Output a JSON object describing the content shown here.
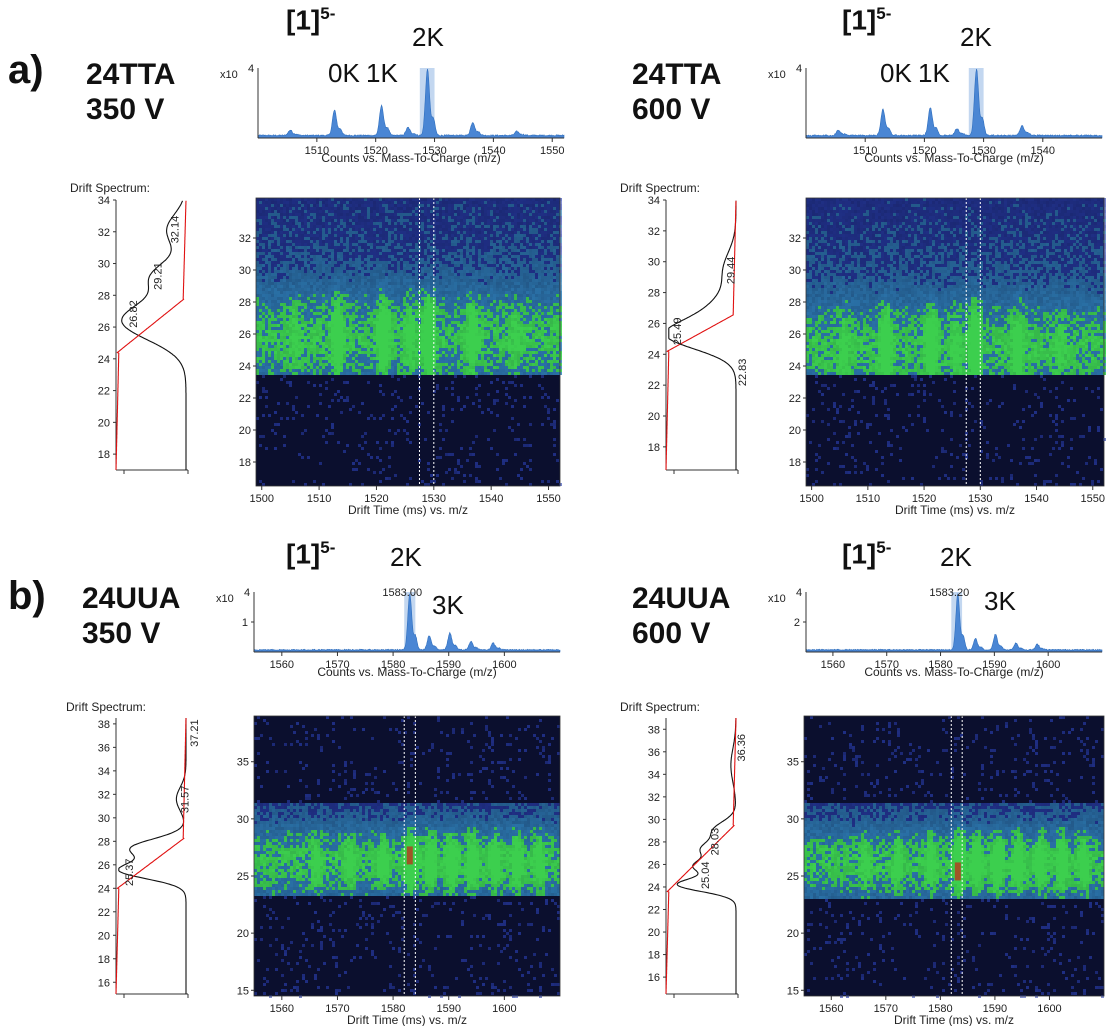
{
  "labels": {
    "row_a": "a)",
    "row_b": "b)",
    "ion_base": "[1]",
    "ion_sup": "5-",
    "drift_title": "Drift Spectrum:",
    "ms_xlabel": "Counts vs. Mass-To-Charge (m/z)",
    "map_xlabel": "Drift Time (ms) vs. m/z",
    "ms_scale": "x10",
    "ms_scale_exp": "4"
  },
  "colors": {
    "ms_fill": "#4a86d4",
    "highlight": "#a9c6ea",
    "drift_black": "#111111",
    "drift_red": "#e01010",
    "map_bg": "#0b0f2e",
    "map_blue": "#2a3fb0",
    "map_green": "#3ccf4e",
    "map_red": "#b24020"
  },
  "chart_data": [
    {
      "id": "a-350",
      "type": "heatmap",
      "sample": "24TTA",
      "voltage": "350 V",
      "peak_tags": [
        "0K",
        "1K",
        "2K"
      ],
      "ms": {
        "xlim": [
          1500,
          1552
        ],
        "xticks": [
          1510,
          1520,
          1530,
          1540,
          1550
        ],
        "yticks": [],
        "yticklabels": [],
        "peaks": [
          [
            1505.5,
            0.08
          ],
          [
            1513,
            0.38
          ],
          [
            1521,
            0.45
          ],
          [
            1525.5,
            0.12
          ],
          [
            1528.8,
            1.0
          ],
          [
            1536.5,
            0.2
          ],
          [
            1544,
            0.06
          ]
        ],
        "highlight": [
          1527.5,
          1530
        ],
        "highlight_label": ""
      },
      "drift": {
        "ylim": [
          17,
          34
        ],
        "yticks": [
          18,
          20,
          22,
          24,
          26,
          28,
          30,
          32,
          34
        ],
        "labels": [
          "32.14",
          "29.21",
          "26.82"
        ],
        "label_y": [
          32.14,
          29.21,
          26.82
        ],
        "black_peaks": [
          [
            26.4,
            1.0,
            1.2
          ],
          [
            29.2,
            0.5,
            0.9
          ],
          [
            32.1,
            0.3,
            1.0
          ]
        ],
        "red_range": [
          24.4,
          27.8
        ]
      },
      "map": {
        "xlim": [
          1499,
          1552
        ],
        "xticks": [
          1500,
          1510,
          1520,
          1530,
          1540,
          1550
        ],
        "ylim": [
          16.5,
          34.5
        ],
        "yticks": [
          18,
          20,
          22,
          24,
          26,
          28,
          30,
          32
        ],
        "band": [
          23.6,
          34.5
        ],
        "center": 25.8,
        "spots": [
          [
            1505.5,
            0.25
          ],
          [
            1513,
            0.7
          ],
          [
            1521,
            0.75
          ],
          [
            1525.5,
            0.35
          ],
          [
            1528.8,
            1.0
          ],
          [
            1536.5,
            0.5
          ],
          [
            1544,
            0.2
          ]
        ],
        "markers": [
          1527.5,
          1530
        ],
        "red_spot": null
      }
    },
    {
      "id": "a-600",
      "type": "heatmap",
      "sample": "24TTA",
      "voltage": "600 V",
      "peak_tags": [
        "0K",
        "1K",
        "2K"
      ],
      "ms": {
        "xlim": [
          1500,
          1550
        ],
        "xticks": [
          1510,
          1520,
          1530,
          1540
        ],
        "yticks": [],
        "yticklabels": [],
        "peaks": [
          [
            1505.5,
            0.08
          ],
          [
            1513,
            0.4
          ],
          [
            1521,
            0.42
          ],
          [
            1525.5,
            0.1
          ],
          [
            1528.8,
            1.0
          ],
          [
            1536.5,
            0.15
          ]
        ],
        "highlight": [
          1527.5,
          1530
        ],
        "highlight_label": ""
      },
      "drift": {
        "ylim": [
          16.5,
          34
        ],
        "yticks": [
          18,
          20,
          22,
          24,
          26,
          28,
          30,
          32,
          34
        ],
        "labels": [
          "29.44",
          "25.49",
          "22.83"
        ],
        "label_y": [
          29.44,
          25.49,
          22.83
        ],
        "black_peaks": [
          [
            25.2,
            1.0,
            0.9
          ],
          [
            26.8,
            0.35,
            1.0
          ],
          [
            29.4,
            0.2,
            1.2
          ]
        ],
        "red_range": [
          24.2,
          26.6
        ]
      },
      "map": {
        "xlim": [
          1499,
          1552
        ],
        "xticks": [
          1500,
          1510,
          1520,
          1530,
          1540,
          1550
        ],
        "ylim": [
          16.5,
          34.5
        ],
        "yticks": [
          18,
          20,
          22,
          24,
          26,
          28,
          30,
          32
        ],
        "band": [
          23.6,
          34.5
        ],
        "center": 25.2,
        "spots": [
          [
            1505.5,
            0.3
          ],
          [
            1513,
            0.75
          ],
          [
            1521,
            0.75
          ],
          [
            1525.5,
            0.3
          ],
          [
            1528.8,
            1.0
          ],
          [
            1536.5,
            0.55
          ],
          [
            1544,
            0.2
          ]
        ],
        "markers": [
          1527.5,
          1530
        ],
        "red_spot": null
      }
    },
    {
      "id": "b-350",
      "type": "heatmap",
      "sample": "24UUA",
      "voltage": "350 V",
      "peak_tags": [
        "2K",
        "3K"
      ],
      "ms": {
        "xlim": [
          1555,
          1610
        ],
        "xticks": [
          1560,
          1570,
          1580,
          1590,
          1600
        ],
        "yticks": [
          1
        ],
        "yticklabels": [
          "1"
        ],
        "peaks": [
          [
            1583.0,
            1.0
          ],
          [
            1586.5,
            0.25
          ],
          [
            1590.2,
            0.3
          ],
          [
            1594,
            0.15
          ],
          [
            1598,
            0.12
          ]
        ],
        "highlight": [
          1582,
          1584
        ],
        "highlight_label": "1583.00"
      },
      "drift": {
        "ylim": [
          15,
          38.5
        ],
        "yticks": [
          16,
          18,
          20,
          22,
          24,
          26,
          28,
          30,
          32,
          34,
          36,
          38
        ],
        "labels": [
          "37.21",
          "31.57",
          "25.37"
        ],
        "label_y": [
          37.21,
          31.57,
          25.37
        ],
        "black_peaks": [
          [
            25.5,
            1.0,
            0.7
          ],
          [
            27.4,
            0.85,
            0.8
          ],
          [
            31.6,
            0.15,
            1.0
          ]
        ],
        "red_range": [
          24.0,
          28.3
        ]
      },
      "map": {
        "xlim": [
          1555,
          1610
        ],
        "xticks": [
          1560,
          1570,
          1580,
          1590,
          1600
        ],
        "ylim": [
          14.5,
          39
        ],
        "yticks": [
          15,
          20,
          25,
          30,
          35
        ],
        "band": [
          23.5,
          31.5
        ],
        "center": 26.3,
        "spots": [
          [
            1566,
            0.4
          ],
          [
            1572,
            0.4
          ],
          [
            1578,
            0.45
          ],
          [
            1583,
            1.0
          ],
          [
            1586.5,
            0.7
          ],
          [
            1590.2,
            0.7
          ],
          [
            1594,
            0.65
          ],
          [
            1598,
            0.6
          ],
          [
            1602,
            0.55
          ],
          [
            1606,
            0.5
          ]
        ],
        "markers": [
          1582,
          1584
        ],
        "red_spot": [
          1583,
          26.8
        ]
      }
    },
    {
      "id": "b-600",
      "type": "heatmap",
      "sample": "24UUA",
      "voltage": "600 V",
      "peak_tags": [
        "2K",
        "3K"
      ],
      "ms": {
        "xlim": [
          1555,
          1610
        ],
        "xticks": [
          1560,
          1570,
          1580,
          1590,
          1600
        ],
        "yticks": [
          2
        ],
        "yticklabels": [
          "2"
        ],
        "peaks": [
          [
            1583.2,
            1.0
          ],
          [
            1586.5,
            0.2
          ],
          [
            1590.2,
            0.28
          ],
          [
            1594,
            0.12
          ],
          [
            1598,
            0.1
          ]
        ],
        "highlight": [
          1582,
          1584
        ],
        "highlight_label": "1583.20"
      },
      "drift": {
        "ylim": [
          14.5,
          39
        ],
        "yticks": [
          16,
          18,
          20,
          22,
          24,
          26,
          28,
          30,
          32,
          34,
          36,
          38
        ],
        "labels": [
          "36.36",
          "28.03",
          "25.04"
        ],
        "label_y": [
          36.36,
          28.03,
          25.04
        ],
        "black_peaks": [
          [
            24.2,
            0.9,
            0.6
          ],
          [
            25.8,
            0.6,
            0.6
          ],
          [
            27.3,
            0.5,
            0.7
          ],
          [
            29.0,
            0.35,
            0.8
          ],
          [
            34.8,
            0.08,
            1.5
          ]
        ],
        "red_range": [
          23.6,
          29.5
        ]
      },
      "map": {
        "xlim": [
          1555,
          1610
        ],
        "xticks": [
          1560,
          1570,
          1580,
          1590,
          1600
        ],
        "ylim": [
          14.5,
          39
        ],
        "yticks": [
          15,
          20,
          25,
          30,
          35
        ],
        "band": [
          23.2,
          31.5
        ],
        "center": 26.2,
        "spots": [
          [
            1566,
            0.35
          ],
          [
            1572,
            0.4
          ],
          [
            1578,
            0.5
          ],
          [
            1583.2,
            1.0
          ],
          [
            1586.5,
            0.75
          ],
          [
            1590.2,
            0.8
          ],
          [
            1594,
            0.7
          ],
          [
            1598,
            0.65
          ],
          [
            1602,
            0.6
          ],
          [
            1606,
            0.55
          ]
        ],
        "markers": [
          1582,
          1584
        ],
        "red_spot": [
          1583.2,
          25.4
        ]
      }
    }
  ]
}
